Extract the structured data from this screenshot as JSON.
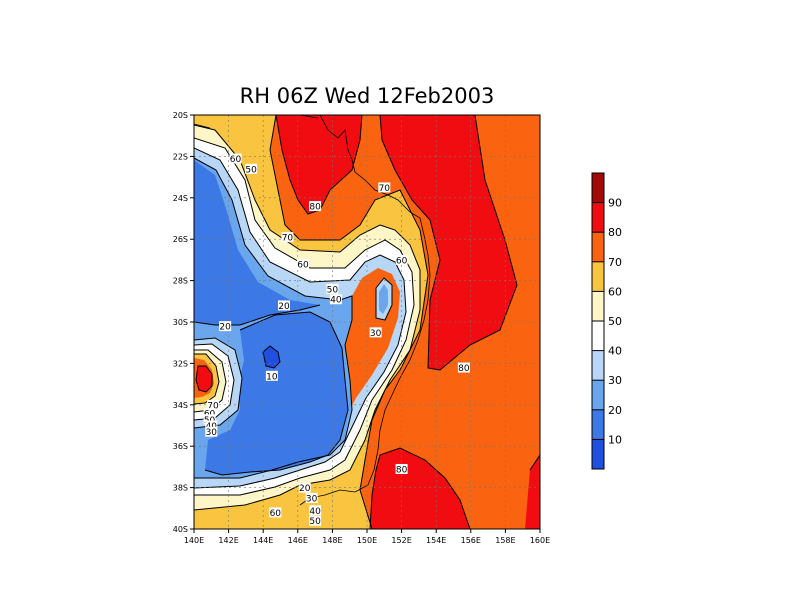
{
  "title": "RH 06Z Wed 12Feb2003",
  "map": {
    "lon_range": [
      140,
      160
    ],
    "lat_range": [
      -40,
      -20
    ],
    "lon_ticks": [
      "140E",
      "142E",
      "144E",
      "146E",
      "148E",
      "150E",
      "152E",
      "154E",
      "156E",
      "158E",
      "160E"
    ],
    "lat_ticks": [
      "20S",
      "22S",
      "24S",
      "26S",
      "28S",
      "30S",
      "32S",
      "34S",
      "36S",
      "38S",
      "40S"
    ],
    "grid": "dashed",
    "contour_labels": [
      {
        "text": "60",
        "lon": 142.4,
        "lat": -22.1
      },
      {
        "text": "50",
        "lon": 143.3,
        "lat": -22.6
      },
      {
        "text": "80",
        "lon": 147.0,
        "lat": -24.4
      },
      {
        "text": "70",
        "lon": 151.0,
        "lat": -23.5
      },
      {
        "text": "70",
        "lon": 145.4,
        "lat": -25.9
      },
      {
        "text": "60",
        "lon": 152.0,
        "lat": -27.0
      },
      {
        "text": "60",
        "lon": 146.3,
        "lat": -27.2
      },
      {
        "text": "50",
        "lon": 148.0,
        "lat": -28.4
      },
      {
        "text": "40",
        "lon": 148.2,
        "lat": -28.9
      },
      {
        "text": "20",
        "lon": 145.2,
        "lat": -29.2
      },
      {
        "text": "20",
        "lon": 141.8,
        "lat": -30.2
      },
      {
        "text": "30",
        "lon": 150.5,
        "lat": -30.5
      },
      {
        "text": "80",
        "lon": 155.6,
        "lat": -32.2
      },
      {
        "text": "10",
        "lon": 144.5,
        "lat": -32.6
      },
      {
        "text": "70",
        "lon": 141.1,
        "lat": -34.0
      },
      {
        "text": "60",
        "lon": 140.9,
        "lat": -34.4
      },
      {
        "text": "50",
        "lon": 140.9,
        "lat": -34.7
      },
      {
        "text": "40",
        "lon": 141.0,
        "lat": -35.0
      },
      {
        "text": "30",
        "lon": 141.0,
        "lat": -35.3
      },
      {
        "text": "80",
        "lon": 152.0,
        "lat": -37.1
      },
      {
        "text": "20",
        "lon": 146.4,
        "lat": -38.0
      },
      {
        "text": "30",
        "lon": 146.8,
        "lat": -38.5
      },
      {
        "text": "40",
        "lon": 147.0,
        "lat": -39.1
      },
      {
        "text": "60",
        "lon": 144.7,
        "lat": -39.2
      },
      {
        "text": "50",
        "lon": 147.0,
        "lat": -39.6
      }
    ]
  },
  "colorbar": {
    "tick_labels": [
      "10",
      "20",
      "30",
      "40",
      "50",
      "60",
      "70",
      "80",
      "90"
    ],
    "colors": [
      "#1f4fe0",
      "#3c78e6",
      "#6aa6ee",
      "#b8d6f6",
      "#ffffff",
      "#fff6c8",
      "#f9c540",
      "#fa6410",
      "#f00c10",
      "#a00a08"
    ]
  },
  "legend_placement": "right"
}
